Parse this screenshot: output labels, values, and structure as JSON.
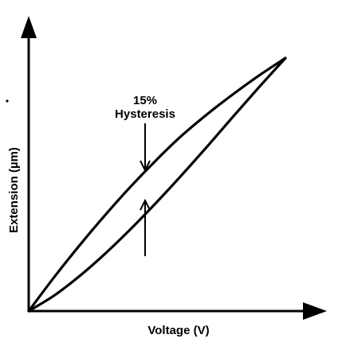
{
  "chart_data": {
    "type": "line",
    "title": "",
    "xlabel": "Voltage (V)",
    "ylabel": "Extension (µm)",
    "xlim": [
      0,
      1
    ],
    "ylim": [
      0,
      1
    ],
    "grid": false,
    "legend": "none",
    "series": [
      {
        "x": [
          0,
          0.1,
          0.2,
          0.3,
          0.4,
          0.5,
          0.6,
          0.7,
          0.8,
          0.9,
          1.0
        ],
        "y": [
          0,
          0.135,
          0.262,
          0.382,
          0.495,
          0.6,
          0.697,
          0.782,
          0.86,
          0.933,
          1.0
        ]
      },
      {
        "x": [
          0,
          0.1,
          0.2,
          0.3,
          0.4,
          0.5,
          0.6,
          0.7,
          0.8,
          0.9,
          1.0
        ],
        "y": [
          0,
          0.062,
          0.14,
          0.229,
          0.327,
          0.432,
          0.542,
          0.656,
          0.773,
          0.888,
          1.0
        ]
      }
    ],
    "annotations": [
      {
        "text": "15%",
        "x": 0.45
      },
      {
        "text": "Hysteresis",
        "x": 0.45
      }
    ],
    "line_color": "#000000"
  }
}
